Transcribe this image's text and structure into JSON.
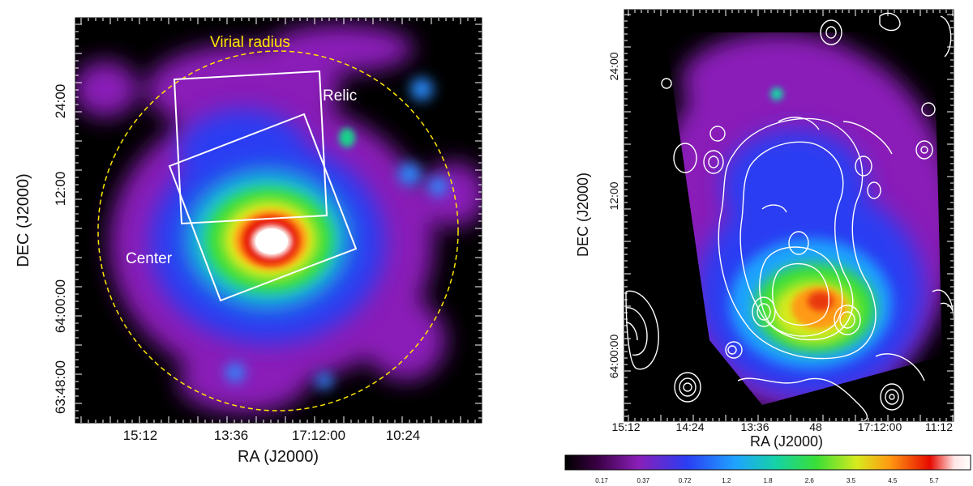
{
  "left_panel": {
    "xlabel": "RA (J2000)",
    "ylabel": "DEC (J2000)",
    "x_ticks": [
      "15:12",
      "13:36",
      "17:12:00",
      "10:24"
    ],
    "y_ticks": [
      "24:00",
      "12:00",
      "64:00:00",
      "63:48:00"
    ],
    "annotations": {
      "virial": "Virial radius",
      "relic": "Relic",
      "center": "Center"
    },
    "colors": {
      "virial_circle": "#ffe600",
      "regions": "#ffffff"
    }
  },
  "right_panel": {
    "xlabel": "RA (J2000)",
    "ylabel": "DEC (J2000)",
    "x_ticks": [
      "15:12",
      "14:24",
      "13:36",
      "48",
      "17:12:00",
      "11:12"
    ],
    "y_ticks": [
      "24:00",
      "12:00",
      "64:00:00"
    ],
    "contour_color": "#ffffff"
  },
  "colorbar": {
    "labels": [
      "0.17",
      "0.37",
      "0.72",
      "1.2",
      "1.8",
      "2.6",
      "3.5",
      "4.5",
      "5.7"
    ]
  }
}
